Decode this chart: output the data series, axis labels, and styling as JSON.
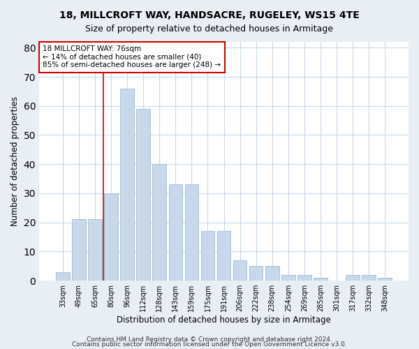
{
  "title": "18, MILLCROFT WAY, HANDSACRE, RUGELEY, WS15 4TE",
  "subtitle": "Size of property relative to detached houses in Armitage",
  "xlabel": "Distribution of detached houses by size in Armitage",
  "ylabel": "Number of detached properties",
  "categories": [
    "33sqm",
    "49sqm",
    "65sqm",
    "80sqm",
    "96sqm",
    "112sqm",
    "128sqm",
    "143sqm",
    "159sqm",
    "175sqm",
    "191sqm",
    "206sqm",
    "222sqm",
    "238sqm",
    "254sqm",
    "269sqm",
    "285sqm",
    "301sqm",
    "317sqm",
    "332sqm",
    "348sqm"
  ],
  "values": [
    3,
    21,
    21,
    30,
    66,
    59,
    40,
    33,
    33,
    17,
    17,
    7,
    5,
    5,
    2,
    2,
    1,
    0,
    2,
    2,
    1
  ],
  "bar_color": "#c8d8eb",
  "bar_edge_color": "#a8c0d8",
  "grid_color": "#c8d8eb",
  "vline_x": 2.5,
  "vline_color": "#cc0000",
  "annotation_text": "18 MILLCROFT WAY: 76sqm\n← 14% of detached houses are smaller (40)\n85% of semi-detached houses are larger (248) →",
  "annotation_box_color": "#ffffff",
  "annotation_box_edge": "#cc0000",
  "ylim": [
    0,
    82
  ],
  "yticks": [
    0,
    10,
    20,
    30,
    40,
    50,
    60,
    70,
    80
  ],
  "footnote1": "Contains HM Land Registry data © Crown copyright and database right 2024.",
  "footnote2": "Contains public sector information licensed under the Open Government Licence v3.0.",
  "bg_color": "#e8eef4",
  "plot_bg_color": "#ffffff",
  "title_fontsize": 10,
  "subtitle_fontsize": 9,
  "tick_fontsize": 7,
  "ylabel_fontsize": 8.5,
  "xlabel_fontsize": 8.5,
  "annot_fontsize": 7.5
}
